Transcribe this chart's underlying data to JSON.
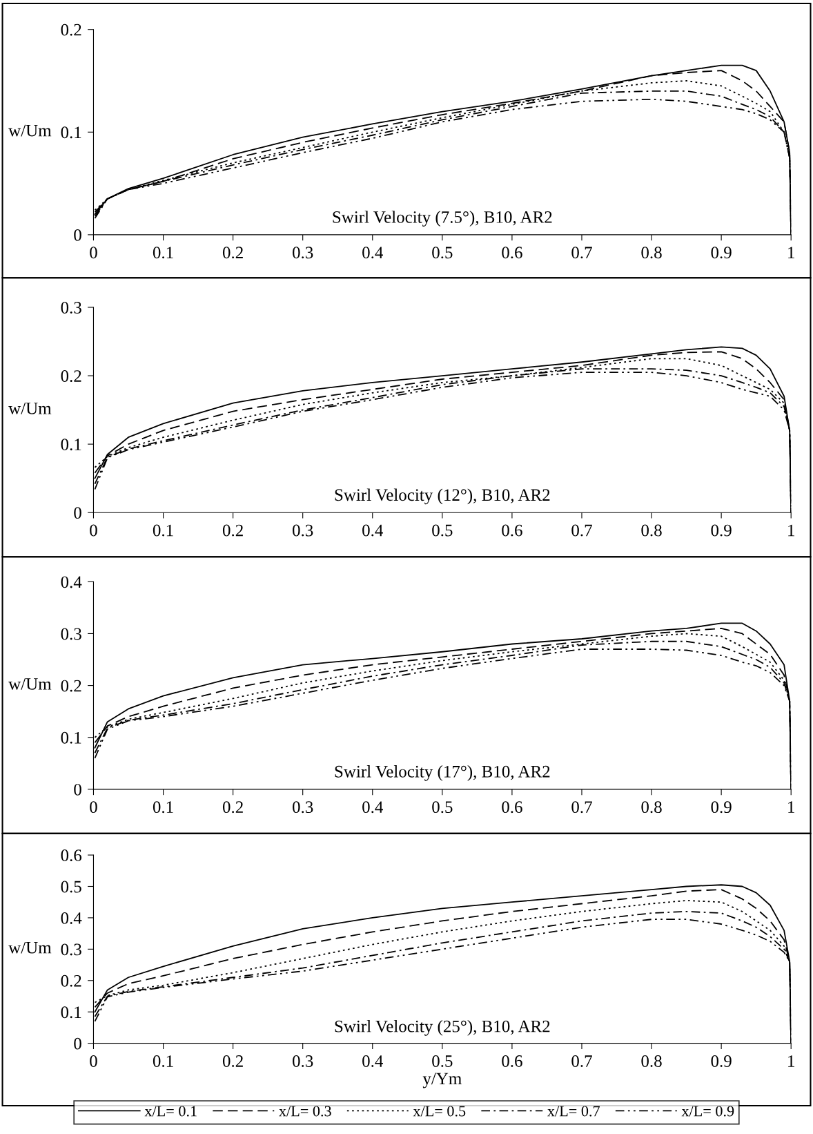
{
  "chart_data": [
    {
      "type": "line",
      "ylabel": "w/Um",
      "annotations": [
        "Swirl Velocity (7.5°), B10, AR2"
      ],
      "xlim": [
        0,
        1
      ],
      "ylim": [
        0,
        0.2
      ],
      "xticks": [
        0,
        0.1,
        0.2,
        0.3,
        0.4,
        0.5,
        0.6,
        0.7,
        0.8,
        0.9,
        1
      ],
      "yticks": [
        0,
        0.1,
        0.2
      ],
      "grid": false,
      "legend": false,
      "x": [
        0.002,
        0.02,
        0.05,
        0.1,
        0.2,
        0.3,
        0.4,
        0.5,
        0.6,
        0.7,
        0.8,
        0.85,
        0.9,
        0.93,
        0.95,
        0.97,
        0.99,
        0.998,
        1.0
      ],
      "series": [
        {
          "color": "#000000",
          "line_style": "solid",
          "values": [
            0.02,
            0.035,
            0.045,
            0.055,
            0.078,
            0.095,
            0.108,
            0.12,
            0.13,
            0.142,
            0.155,
            0.16,
            0.165,
            0.165,
            0.16,
            0.14,
            0.11,
            0.08,
            0
          ]
        },
        {
          "color": "#000000",
          "line_style": "dashed",
          "values": [
            0.022,
            0.035,
            0.044,
            0.052,
            0.074,
            0.09,
            0.104,
            0.117,
            0.128,
            0.14,
            0.155,
            0.158,
            0.16,
            0.15,
            0.14,
            0.125,
            0.11,
            0.08,
            0
          ]
        },
        {
          "color": "#000000",
          "line_style": "dotted",
          "values": [
            0.024,
            0.035,
            0.044,
            0.053,
            0.07,
            0.085,
            0.1,
            0.114,
            0.127,
            0.14,
            0.148,
            0.15,
            0.145,
            0.135,
            0.128,
            0.12,
            0.1,
            0.075,
            0
          ]
        },
        {
          "color": "#000000",
          "line_style": "dashdot",
          "values": [
            0.018,
            0.035,
            0.044,
            0.052,
            0.068,
            0.083,
            0.097,
            0.112,
            0.125,
            0.138,
            0.14,
            0.14,
            0.135,
            0.127,
            0.122,
            0.115,
            0.1,
            0.075,
            0
          ]
        },
        {
          "color": "#000000",
          "line_style": "dashdotdot",
          "values": [
            0.016,
            0.035,
            0.044,
            0.05,
            0.065,
            0.08,
            0.094,
            0.11,
            0.122,
            0.13,
            0.132,
            0.13,
            0.125,
            0.122,
            0.118,
            0.112,
            0.1,
            0.075,
            0
          ]
        }
      ]
    },
    {
      "type": "line",
      "ylabel": "w/Um",
      "annotations": [
        "Swirl Velocity (12°), B10, AR2"
      ],
      "xlim": [
        0,
        1
      ],
      "ylim": [
        0,
        0.3
      ],
      "xticks": [
        0,
        0.1,
        0.2,
        0.3,
        0.4,
        0.5,
        0.6,
        0.7,
        0.8,
        0.9,
        1
      ],
      "yticks": [
        0,
        0.1,
        0.2,
        0.3
      ],
      "grid": false,
      "legend": false,
      "x": [
        0.002,
        0.02,
        0.05,
        0.1,
        0.2,
        0.3,
        0.4,
        0.5,
        0.6,
        0.7,
        0.8,
        0.85,
        0.9,
        0.93,
        0.95,
        0.97,
        0.99,
        0.998,
        1.0
      ],
      "series": [
        {
          "color": "#000000",
          "line_style": "solid",
          "values": [
            0.05,
            0.085,
            0.11,
            0.13,
            0.16,
            0.178,
            0.19,
            0.2,
            0.21,
            0.22,
            0.232,
            0.238,
            0.242,
            0.24,
            0.23,
            0.21,
            0.17,
            0.12,
            0
          ]
        },
        {
          "color": "#000000",
          "line_style": "dashed",
          "values": [
            0.058,
            0.083,
            0.1,
            0.12,
            0.148,
            0.165,
            0.18,
            0.195,
            0.205,
            0.215,
            0.23,
            0.234,
            0.235,
            0.225,
            0.21,
            0.19,
            0.165,
            0.12,
            0
          ]
        },
        {
          "color": "#000000",
          "line_style": "dotted",
          "values": [
            0.066,
            0.082,
            0.095,
            0.11,
            0.135,
            0.158,
            0.175,
            0.19,
            0.2,
            0.212,
            0.225,
            0.225,
            0.215,
            0.2,
            0.19,
            0.18,
            0.16,
            0.12,
            0
          ]
        },
        {
          "color": "#000000",
          "line_style": "dashdot",
          "values": [
            0.042,
            0.081,
            0.093,
            0.105,
            0.128,
            0.15,
            0.168,
            0.187,
            0.2,
            0.21,
            0.21,
            0.208,
            0.2,
            0.19,
            0.183,
            0.175,
            0.155,
            0.12,
            0
          ]
        },
        {
          "color": "#000000",
          "line_style": "dashdotdot",
          "values": [
            0.034,
            0.08,
            0.092,
            0.103,
            0.125,
            0.148,
            0.165,
            0.183,
            0.197,
            0.205,
            0.205,
            0.2,
            0.19,
            0.18,
            0.175,
            0.17,
            0.15,
            0.12,
            0
          ]
        }
      ]
    },
    {
      "type": "line",
      "ylabel": "w/Um",
      "annotations": [
        "Swirl Velocity (17°), B10, AR2"
      ],
      "xlim": [
        0,
        1
      ],
      "ylim": [
        0,
        0.4
      ],
      "xticks": [
        0,
        0.1,
        0.2,
        0.3,
        0.4,
        0.5,
        0.6,
        0.7,
        0.8,
        0.9,
        1
      ],
      "yticks": [
        0,
        0.1,
        0.2,
        0.3,
        0.4
      ],
      "grid": false,
      "legend": false,
      "x": [
        0.002,
        0.02,
        0.05,
        0.1,
        0.2,
        0.3,
        0.4,
        0.5,
        0.6,
        0.7,
        0.8,
        0.85,
        0.9,
        0.93,
        0.95,
        0.97,
        0.99,
        0.998,
        1.0
      ],
      "series": [
        {
          "color": "#000000",
          "line_style": "solid",
          "values": [
            0.08,
            0.13,
            0.155,
            0.18,
            0.215,
            0.24,
            0.252,
            0.265,
            0.28,
            0.29,
            0.305,
            0.31,
            0.32,
            0.32,
            0.305,
            0.28,
            0.24,
            0.17,
            0
          ]
        },
        {
          "color": "#000000",
          "line_style": "dashed",
          "values": [
            0.09,
            0.122,
            0.14,
            0.16,
            0.195,
            0.22,
            0.24,
            0.255,
            0.27,
            0.285,
            0.3,
            0.305,
            0.31,
            0.3,
            0.28,
            0.26,
            0.22,
            0.17,
            0
          ]
        },
        {
          "color": "#000000",
          "line_style": "dotted",
          "values": [
            0.1,
            0.12,
            0.135,
            0.148,
            0.175,
            0.205,
            0.228,
            0.248,
            0.265,
            0.28,
            0.295,
            0.3,
            0.295,
            0.275,
            0.26,
            0.245,
            0.21,
            0.17,
            0
          ]
        },
        {
          "color": "#000000",
          "line_style": "dashdot",
          "values": [
            0.07,
            0.118,
            0.133,
            0.143,
            0.165,
            0.192,
            0.218,
            0.24,
            0.258,
            0.278,
            0.285,
            0.285,
            0.275,
            0.26,
            0.25,
            0.235,
            0.205,
            0.17,
            0
          ]
        },
        {
          "color": "#000000",
          "line_style": "dashdotdot",
          "values": [
            0.06,
            0.116,
            0.132,
            0.14,
            0.16,
            0.185,
            0.21,
            0.233,
            0.252,
            0.27,
            0.27,
            0.268,
            0.258,
            0.245,
            0.238,
            0.225,
            0.2,
            0.17,
            0
          ]
        }
      ]
    },
    {
      "type": "line",
      "xlabel": "y/Ym",
      "ylabel": "w/Um",
      "annotations": [
        "Swirl Velocity (25°), B10, AR2"
      ],
      "xlim": [
        0,
        1
      ],
      "ylim": [
        0,
        0.6
      ],
      "xticks": [
        0,
        0.1,
        0.2,
        0.3,
        0.4,
        0.5,
        0.6,
        0.7,
        0.8,
        0.9,
        1
      ],
      "yticks": [
        0,
        0.1,
        0.2,
        0.3,
        0.4,
        0.5,
        0.6
      ],
      "grid": false,
      "legend": "bottom",
      "x": [
        0.002,
        0.02,
        0.05,
        0.1,
        0.2,
        0.3,
        0.4,
        0.5,
        0.6,
        0.7,
        0.8,
        0.85,
        0.9,
        0.93,
        0.95,
        0.97,
        0.99,
        0.998,
        1.0
      ],
      "series": [
        {
          "name": "x/L= 0.1",
          "color": "#000000",
          "line_style": "solid",
          "values": [
            0.1,
            0.17,
            0.21,
            0.245,
            0.31,
            0.365,
            0.4,
            0.43,
            0.45,
            0.47,
            0.49,
            0.5,
            0.505,
            0.5,
            0.48,
            0.44,
            0.36,
            0.26,
            0
          ]
        },
        {
          "name": "x/L= 0.3",
          "color": "#000000",
          "line_style": "dashed",
          "values": [
            0.115,
            0.16,
            0.19,
            0.215,
            0.27,
            0.315,
            0.355,
            0.39,
            0.42,
            0.445,
            0.47,
            0.485,
            0.49,
            0.46,
            0.43,
            0.39,
            0.33,
            0.26,
            0
          ]
        },
        {
          "name": "x/L= 0.5",
          "color": "#000000",
          "line_style": "dotted",
          "values": [
            0.13,
            0.152,
            0.17,
            0.185,
            0.225,
            0.27,
            0.315,
            0.355,
            0.39,
            0.42,
            0.445,
            0.455,
            0.45,
            0.42,
            0.39,
            0.36,
            0.31,
            0.26,
            0
          ]
        },
        {
          "name": "x/L= 0.7",
          "color": "#000000",
          "line_style": "dashdot",
          "values": [
            0.085,
            0.15,
            0.165,
            0.18,
            0.21,
            0.24,
            0.28,
            0.32,
            0.355,
            0.39,
            0.415,
            0.42,
            0.415,
            0.39,
            0.37,
            0.34,
            0.3,
            0.26,
            0
          ]
        },
        {
          "name": "x/L= 0.9",
          "color": "#000000",
          "line_style": "dashdotdot",
          "values": [
            0.07,
            0.148,
            0.163,
            0.178,
            0.205,
            0.23,
            0.265,
            0.3,
            0.335,
            0.37,
            0.395,
            0.395,
            0.38,
            0.36,
            0.345,
            0.325,
            0.29,
            0.26,
            0
          ]
        }
      ]
    }
  ]
}
